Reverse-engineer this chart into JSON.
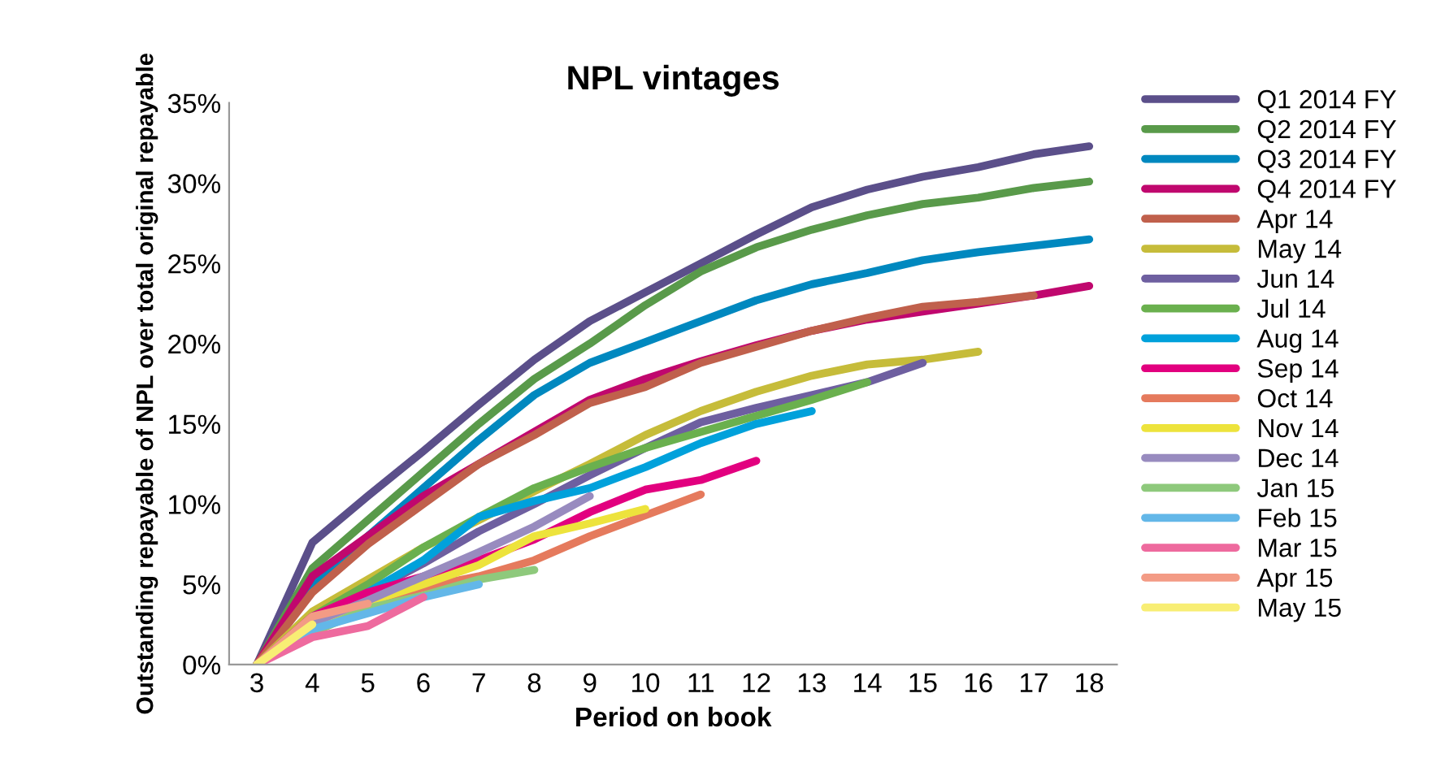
{
  "chart_data": {
    "type": "line",
    "title": "NPL vintages",
    "xlabel": "Period on book",
    "ylabel": "Outstanding repayable of NPL over total original repayable",
    "xlim": [
      2.5,
      18.5
    ],
    "xticks": [
      3,
      4,
      5,
      6,
      7,
      8,
      9,
      10,
      11,
      12,
      13,
      14,
      15,
      16,
      17,
      18
    ],
    "ylim": [
      0,
      35
    ],
    "yticks": [
      {
        "value": 0,
        "label": "0%"
      },
      {
        "value": 5,
        "label": "5%"
      },
      {
        "value": 10,
        "label": "10%"
      },
      {
        "value": 15,
        "label": "15%"
      },
      {
        "value": 20,
        "label": "20%"
      },
      {
        "value": 25,
        "label": "25%"
      },
      {
        "value": 30,
        "label": "30%"
      },
      {
        "value": 35,
        "label": "35%"
      }
    ],
    "x": [
      3,
      4,
      5,
      6,
      7,
      8,
      9,
      10,
      11,
      12,
      13,
      14,
      15,
      16,
      17,
      18
    ],
    "grid": false,
    "legend": "right",
    "marker": "none",
    "line_style": "solid",
    "series": [
      {
        "name": "Q1 2014 FY",
        "color": "#5b4f8a",
        "values": [
          0,
          7.6,
          10.5,
          13.3,
          16.2,
          19.0,
          21.4,
          23.2,
          25.0,
          26.8,
          28.5,
          29.6,
          30.4,
          31.0,
          31.8,
          32.3
        ]
      },
      {
        "name": "Q2 2014 FY",
        "color": "#599a4a",
        "values": [
          0,
          6.0,
          9.0,
          12.0,
          15.0,
          17.8,
          20.0,
          22.4,
          24.5,
          26.0,
          27.1,
          28.0,
          28.7,
          29.1,
          29.7,
          30.1
        ]
      },
      {
        "name": "Q3 2014 FY",
        "color": "#0088bf",
        "values": [
          0,
          5.0,
          8.0,
          11.0,
          14.0,
          16.8,
          18.8,
          20.1,
          21.4,
          22.7,
          23.7,
          24.4,
          25.2,
          25.7,
          26.1,
          26.5
        ]
      },
      {
        "name": "Q4 2014 FY",
        "color": "#c0076e",
        "values": [
          0,
          5.5,
          8.0,
          10.5,
          12.5,
          14.5,
          16.5,
          17.8,
          18.9,
          19.9,
          20.8,
          21.5,
          22.0,
          22.5,
          23.0,
          23.6
        ]
      },
      {
        "name": "Apr 14",
        "color": "#c0604c",
        "values": [
          0,
          4.5,
          7.5,
          10.0,
          12.5,
          14.3,
          16.3,
          17.3,
          18.8,
          19.8,
          20.8,
          21.6,
          22.3,
          22.6,
          23.0,
          null
        ]
      },
      {
        "name": "May 14",
        "color": "#c6bc3a",
        "values": [
          0,
          3.3,
          5.3,
          7.3,
          9.0,
          10.8,
          12.5,
          14.3,
          15.8,
          17.0,
          18.0,
          18.7,
          19.0,
          19.5,
          null,
          null
        ]
      },
      {
        "name": "Jun 14",
        "color": "#6e5fa0",
        "values": [
          0,
          2.8,
          4.5,
          6.3,
          8.3,
          10.0,
          11.8,
          13.5,
          15.1,
          16.0,
          16.8,
          17.6,
          18.8,
          null,
          null,
          null
        ]
      },
      {
        "name": "Jul 14",
        "color": "#6ab04e",
        "values": [
          0,
          3.0,
          5.0,
          7.3,
          9.2,
          11.0,
          12.3,
          13.5,
          14.5,
          15.5,
          16.5,
          17.6,
          null,
          null,
          null,
          null
        ]
      },
      {
        "name": "Aug 14",
        "color": "#00a1db",
        "values": [
          0,
          2.6,
          4.5,
          6.5,
          9.2,
          10.2,
          11.0,
          12.3,
          13.8,
          15.0,
          15.8,
          null,
          null,
          null,
          null,
          null
        ]
      },
      {
        "name": "Sep 14",
        "color": "#e2007f",
        "values": [
          0,
          3.0,
          4.5,
          5.5,
          6.5,
          7.8,
          9.5,
          10.9,
          11.5,
          12.7,
          null,
          null,
          null,
          null,
          null,
          null
        ]
      },
      {
        "name": "Oct 14",
        "color": "#e57a5d",
        "values": [
          0,
          2.3,
          3.7,
          4.8,
          5.5,
          6.5,
          8.0,
          9.3,
          10.6,
          null,
          null,
          null,
          null,
          null,
          null,
          null
        ]
      },
      {
        "name": "Nov 14",
        "color": "#ede33c",
        "values": [
          0,
          2.5,
          3.9,
          5.0,
          6.2,
          8.0,
          8.8,
          9.7,
          null,
          null,
          null,
          null,
          null,
          null,
          null,
          null
        ]
      },
      {
        "name": "Dec 14",
        "color": "#988bbf",
        "values": [
          0,
          2.6,
          4.0,
          5.5,
          7.0,
          8.6,
          10.5,
          null,
          null,
          null,
          null,
          null,
          null,
          null,
          null,
          null
        ]
      },
      {
        "name": "Jan 15",
        "color": "#8ec97c",
        "values": [
          0,
          2.0,
          3.5,
          4.3,
          5.3,
          5.9,
          null,
          null,
          null,
          null,
          null,
          null,
          null,
          null,
          null,
          null
        ]
      },
      {
        "name": "Feb 15",
        "color": "#63b7e8",
        "values": [
          0,
          2.2,
          3.2,
          4.2,
          5.0,
          null,
          null,
          null,
          null,
          null,
          null,
          null,
          null,
          null,
          null,
          null
        ]
      },
      {
        "name": "Mar 15",
        "color": "#ee6a9e",
        "values": [
          0,
          1.7,
          2.4,
          4.2,
          null,
          null,
          null,
          null,
          null,
          null,
          null,
          null,
          null,
          null,
          null,
          null
        ]
      },
      {
        "name": "Apr 15",
        "color": "#f39b85",
        "values": [
          0,
          3.0,
          3.8,
          null,
          null,
          null,
          null,
          null,
          null,
          null,
          null,
          null,
          null,
          null,
          null,
          null
        ]
      },
      {
        "name": "May 15",
        "color": "#f8ee74",
        "values": [
          0,
          2.5,
          null,
          null,
          null,
          null,
          null,
          null,
          null,
          null,
          null,
          null,
          null,
          null,
          null,
          null
        ]
      }
    ]
  }
}
